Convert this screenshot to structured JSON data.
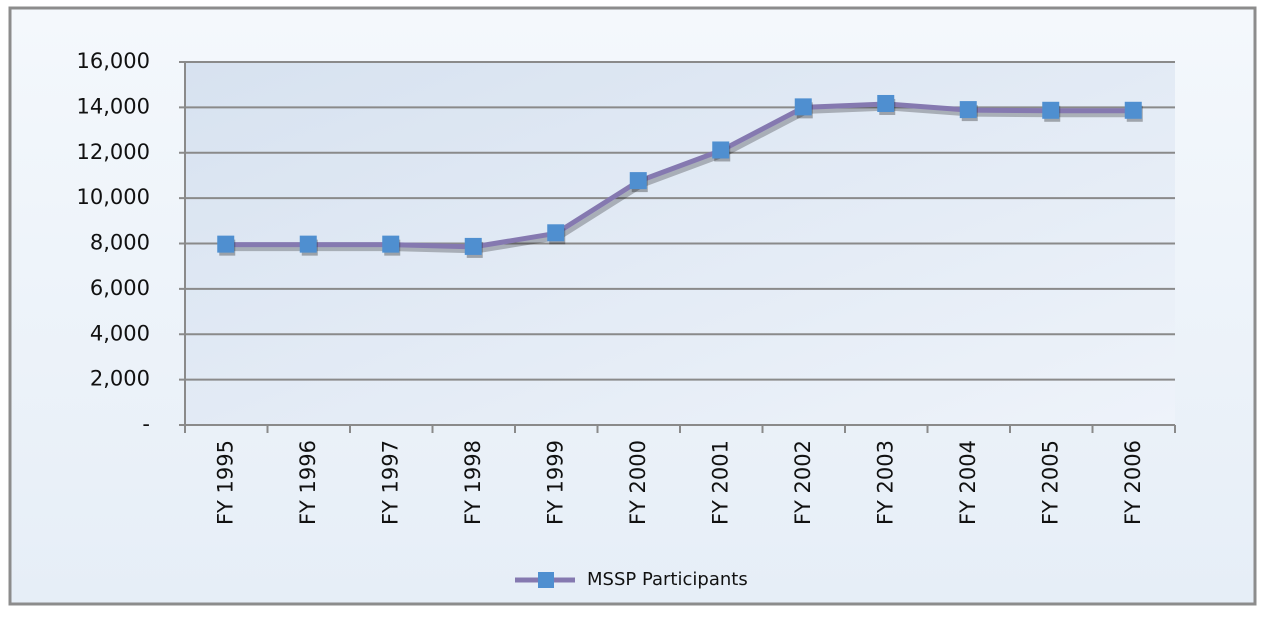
{
  "chart_data": {
    "type": "line",
    "categories": [
      "FY 1995",
      "FY 1996",
      "FY 1997",
      "FY 1998",
      "FY 1999",
      "FY 2000",
      "FY 2001",
      "FY 2002",
      "FY 2003",
      "FY 2004",
      "FY 2005",
      "FY 2006"
    ],
    "series": [
      {
        "name": "MSSP Participants",
        "color": "#8579b0",
        "marker_color": "#4f8fd0",
        "values": [
          7950,
          7950,
          7950,
          7850,
          8450,
          10750,
          12100,
          14000,
          14150,
          13880,
          13850,
          13850
        ]
      }
    ],
    "ylim": [
      0,
      16000
    ],
    "yticks": [
      {
        "value": 0,
        "label": "-"
      },
      {
        "value": 2000,
        "label": "2,000"
      },
      {
        "value": 4000,
        "label": "4,000"
      },
      {
        "value": 6000,
        "label": "6,000"
      },
      {
        "value": 8000,
        "label": "8,000"
      },
      {
        "value": 10000,
        "label": "10,000"
      },
      {
        "value": 12000,
        "label": "12,000"
      },
      {
        "value": 14000,
        "label": "14,000"
      },
      {
        "value": 16000,
        "label": "16,000"
      }
    ],
    "grid": true,
    "legend": "bottom"
  }
}
